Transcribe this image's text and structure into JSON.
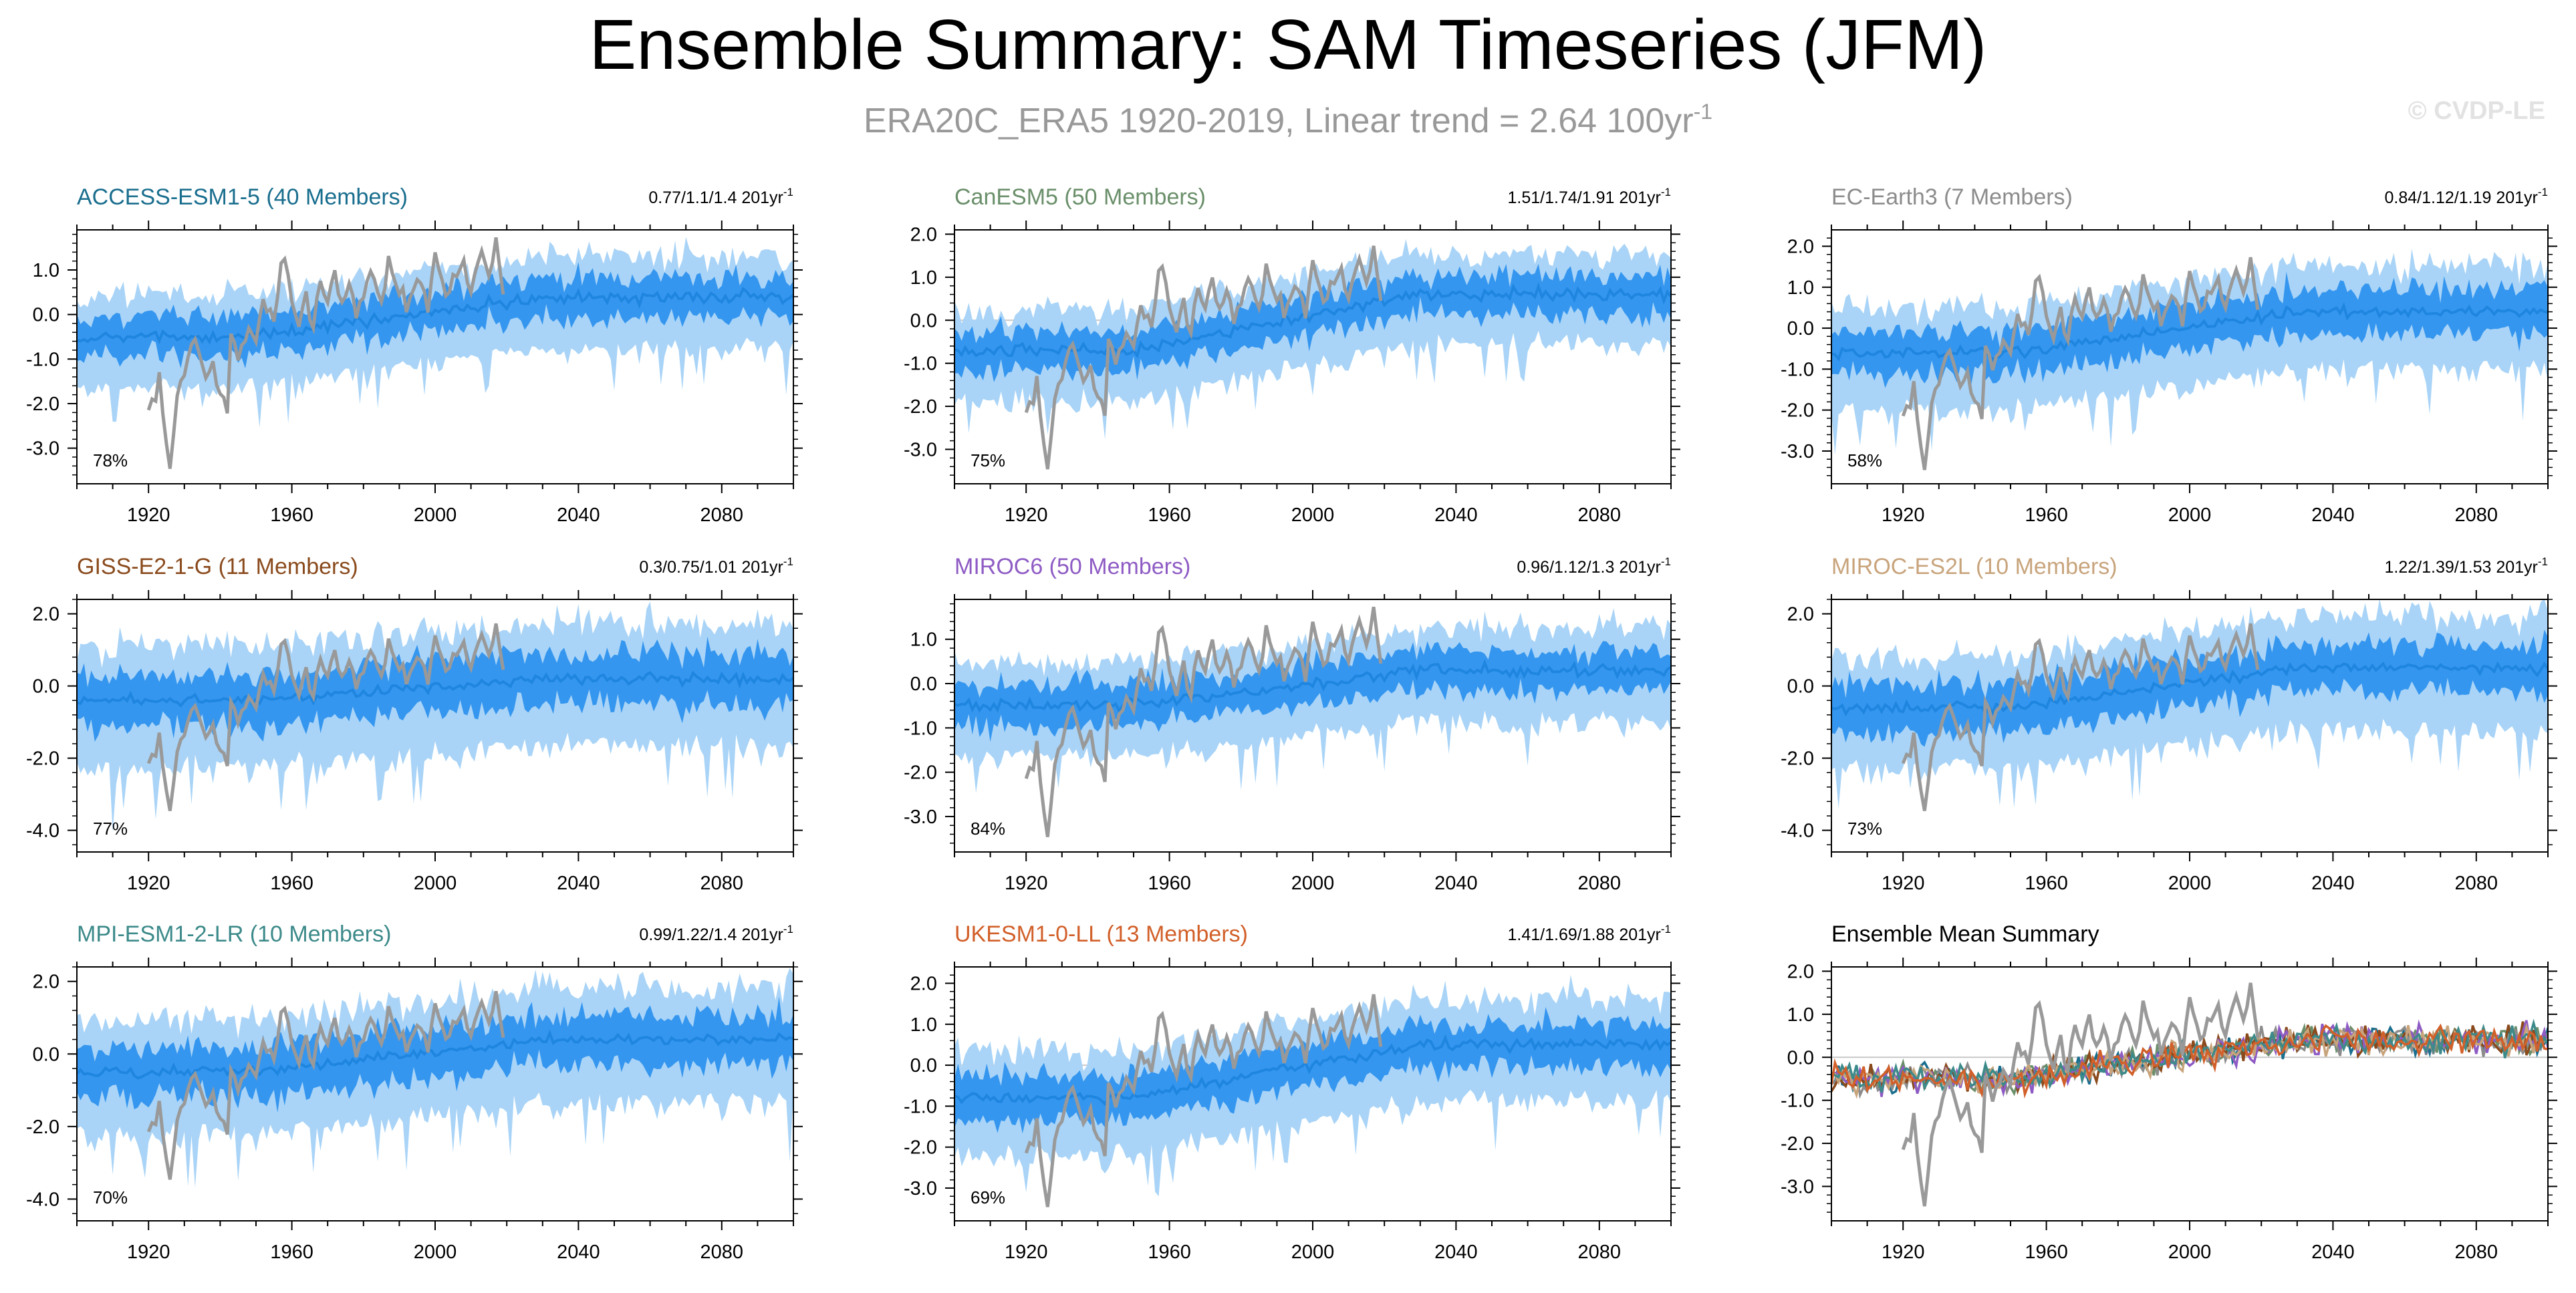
{
  "title": "Ensemble Summary: SAM Timeseries (JFM)",
  "subtitle": "ERA20C_ERA5 1920-2019, Linear trend = 2.64 100yr",
  "subtitle_superscript": "-1",
  "watermark": "© CVDP-LE",
  "colors": {
    "obs": "#999999",
    "ens_outer": "#a9d4f7",
    "ens_inner": "#3596ef",
    "ens_mean": "#1f86e0",
    "axis": "#000000"
  },
  "chart_data": [
    {
      "type": "area",
      "title": "ACCESS-ESM1-5 (40 Members)",
      "title_color": "#1a6e8e",
      "trend_text": "0.77/1.1/1.4 201yr",
      "trend_sup": "-1",
      "percent": "78%",
      "x_ticks": [
        "1920",
        "1960",
        "2000",
        "2040",
        "2080"
      ],
      "y_ticks": [
        "1.0",
        "0.0",
        "-1.0",
        "-2.0",
        "-3.0"
      ],
      "ylim": [
        -3.8,
        1.9
      ],
      "xlim": [
        1900,
        2100
      ],
      "ens_trend": [
        -0.5,
        0.4
      ],
      "spread": 1.0
    },
    {
      "type": "area",
      "title": "CanESM5 (50 Members)",
      "title_color": "#6a8f6a",
      "trend_text": "1.51/1.74/1.91 201yr",
      "trend_sup": "-1",
      "percent": "75%",
      "x_ticks": [
        "1920",
        "1960",
        "2000",
        "2040",
        "2080"
      ],
      "y_ticks": [
        "2.0",
        "1.0",
        "0.0",
        "-1.0",
        "-2.0",
        "-3.0"
      ],
      "ylim": [
        -3.8,
        2.1
      ],
      "xlim": [
        1900,
        2100
      ],
      "ens_trend": [
        -0.7,
        0.6
      ],
      "spread": 1.0
    },
    {
      "type": "area",
      "title": "EC-Earth3 (7 Members)",
      "title_color": "#8c8c8c",
      "trend_text": "0.84/1.12/1.19 201yr",
      "trend_sup": "-1",
      "percent": "58%",
      "x_ticks": [
        "1920",
        "1960",
        "2000",
        "2040",
        "2080"
      ],
      "y_ticks": [
        "2.0",
        "1.0",
        "0.0",
        "-1.0",
        "-2.0",
        "-3.0"
      ],
      "ylim": [
        -3.8,
        2.4
      ],
      "xlim": [
        1900,
        2100
      ],
      "ens_trend": [
        -0.6,
        0.4
      ],
      "spread": 1.2
    },
    {
      "type": "area",
      "title": "GISS-E2-1-G (11 Members)",
      "title_color": "#8a4a1c",
      "trend_text": "0.3/0.75/1.01 201yr",
      "trend_sup": "-1",
      "percent": "77%",
      "x_ticks": [
        "1920",
        "1960",
        "2000",
        "2040",
        "2080"
      ],
      "y_ticks": [
        "2.0",
        "0.0",
        "-2.0",
        "-4.0"
      ],
      "ylim": [
        -4.6,
        2.4
      ],
      "xlim": [
        1900,
        2100
      ],
      "ens_trend": [
        -0.4,
        0.2
      ],
      "spread": 1.6
    },
    {
      "type": "area",
      "title": "MIROC6 (50 Members)",
      "title_color": "#8e5bc4",
      "trend_text": "0.96/1.12/1.3 201yr",
      "trend_sup": "-1",
      "percent": "84%",
      "x_ticks": [
        "1920",
        "1960",
        "2000",
        "2040",
        "2080"
      ],
      "y_ticks": [
        "1.0",
        "0.0",
        "-1.0",
        "-2.0",
        "-3.0"
      ],
      "ylim": [
        -3.8,
        1.9
      ],
      "xlim": [
        1900,
        2100
      ],
      "ens_trend": [
        -0.5,
        0.3
      ],
      "spread": 1.0
    },
    {
      "type": "area",
      "title": "MIROC-ES2L (10 Members)",
      "title_color": "#c8a47c",
      "trend_text": "1.22/1.39/1.53 201yr",
      "trend_sup": "-1",
      "percent": "73%",
      "x_ticks": [
        "1920",
        "1960",
        "2000",
        "2040",
        "2080"
      ],
      "y_ticks": [
        "2.0",
        "0.0",
        "-2.0",
        "-4.0"
      ],
      "ylim": [
        -4.6,
        2.4
      ],
      "xlim": [
        1900,
        2100
      ],
      "ens_trend": [
        -0.6,
        0.5
      ],
      "spread": 1.5
    },
    {
      "type": "area",
      "title": "MPI-ESM1-2-LR (10 Members)",
      "title_color": "#3d8a8a",
      "trend_text": "0.99/1.22/1.4 201yr",
      "trend_sup": "-1",
      "percent": "70%",
      "x_ticks": [
        "1920",
        "1960",
        "2000",
        "2040",
        "2080"
      ],
      "y_ticks": [
        "2.0",
        "0.0",
        "-2.0",
        "-4.0"
      ],
      "ylim": [
        -4.6,
        2.4
      ],
      "xlim": [
        1900,
        2100
      ],
      "ens_trend": [
        -0.5,
        0.4
      ],
      "spread": 1.5
    },
    {
      "type": "area",
      "title": "UKESM1-0-LL (13 Members)",
      "title_color": "#d2602a",
      "trend_text": "1.41/1.69/1.88 201yr",
      "trend_sup": "-1",
      "percent": "69%",
      "x_ticks": [
        "1920",
        "1960",
        "2000",
        "2040",
        "2080"
      ],
      "y_ticks": [
        "2.0",
        "1.0",
        "0.0",
        "-1.0",
        "-2.0",
        "-3.0"
      ],
      "ylim": [
        -3.8,
        2.4
      ],
      "xlim": [
        1900,
        2100
      ],
      "ens_trend": [
        -0.8,
        0.5
      ],
      "spread": 1.2
    },
    {
      "type": "line",
      "title": "Ensemble Mean Summary",
      "title_color": "#000000",
      "trend_text": "",
      "trend_sup": "",
      "percent": "",
      "x_ticks": [
        "1920",
        "1960",
        "2000",
        "2040",
        "2080"
      ],
      "y_ticks": [
        "2.0",
        "1.0",
        "0.0",
        "-1.0",
        "-2.0",
        "-3.0"
      ],
      "ylim": [
        -3.8,
        2.1
      ],
      "xlim": [
        1900,
        2100
      ],
      "series_colors": [
        "#1a6e8e",
        "#6a8f6a",
        "#8c8c8c",
        "#8a4a1c",
        "#8e5bc4",
        "#c8a47c",
        "#3d8a8a",
        "#d2602a"
      ]
    }
  ],
  "obs_series": {
    "name": "ERA20C_ERA5",
    "start_year": 1920,
    "anchor_years": [
      1920,
      1923,
      1925,
      1926,
      1928,
      1930,
      1933,
      1936,
      1938,
      1940,
      1942,
      1943,
      1945,
      1948,
      1950,
      1952,
      1955,
      1957,
      1958,
      1960,
      1962,
      1964,
      1966,
      1968,
      1970,
      1972,
      1974,
      1976,
      1978,
      1980,
      1982,
      1985,
      1987,
      1990,
      1993,
      1995,
      1998,
      2000,
      2003,
      2005,
      2008,
      2010,
      2013,
      2015,
      2017,
      2019
    ],
    "anchor_values": [
      -2.2,
      -1.5,
      -3.0,
      -3.5,
      -1.8,
      -1.2,
      -0.5,
      -1.5,
      -1.0,
      -1.8,
      -2.2,
      -0.5,
      -1.0,
      -0.3,
      -0.6,
      0.4,
      -0.2,
      1.0,
      1.3,
      0.2,
      -0.4,
      0.5,
      -0.2,
      0.8,
      0.3,
      1.0,
      0.2,
      0.8,
      -0.1,
      0.5,
      1.0,
      0.3,
      1.2,
      0.5,
      0.2,
      0.9,
      0.1,
      1.3,
      0.4,
      0.8,
      1.1,
      0.6,
      1.4,
      0.9,
      1.7,
      0.5
    ]
  }
}
